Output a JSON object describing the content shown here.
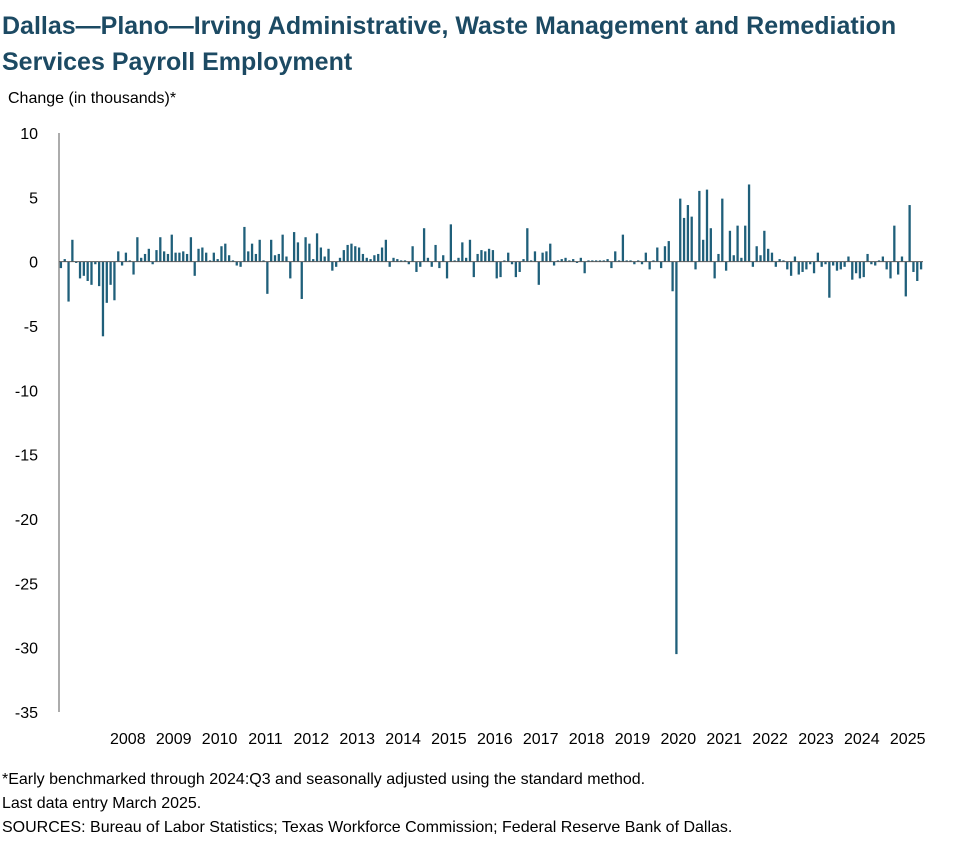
{
  "title": "Dallas—Plano—Irving Administrative, Waste Management and Remediation Services Payroll Employment",
  "chart_data": {
    "type": "bar",
    "title": "Dallas—Plano—Irving Administrative, Waste Management and Remediation Services Payroll Employment",
    "ylabel": "Change (in thousands)*",
    "xlabel": "",
    "ylim": [
      -35,
      10
    ],
    "yticks": [
      "10",
      "5",
      "0",
      "-5",
      "-10",
      "-15",
      "-20",
      "-25",
      "-30",
      "-35"
    ],
    "year_labels": [
      "2008",
      "2009",
      "2010",
      "2011",
      "2012",
      "2013",
      "2014",
      "2015",
      "2016",
      "2017",
      "2018",
      "2019",
      "2020",
      "2021",
      "2022",
      "2023",
      "2024",
      "2025"
    ],
    "start": "2007-01",
    "end": "2025-03",
    "frequency": "monthly",
    "values": [
      -0.5,
      0.2,
      -3.1,
      1.7,
      -0.1,
      -1.3,
      -1.1,
      -1.5,
      -1.8,
      -0.2,
      -1.9,
      -5.8,
      -3.2,
      -1.8,
      -3.0,
      0.8,
      -0.3,
      0.7,
      0.1,
      -1.0,
      1.9,
      0.3,
      0.6,
      1.0,
      -0.2,
      0.9,
      1.9,
      0.8,
      0.6,
      2.1,
      0.7,
      0.7,
      0.8,
      0.6,
      1.9,
      -1.1,
      1.0,
      1.1,
      0.7,
      0.1,
      0.7,
      0.2,
      1.2,
      1.4,
      0.5,
      0.1,
      -0.3,
      -0.4,
      2.7,
      0.8,
      1.4,
      0.6,
      1.7,
      0.1,
      -2.5,
      1.7,
      0.5,
      0.6,
      2.1,
      0.4,
      -1.3,
      2.3,
      1.5,
      -2.9,
      1.9,
      1.4,
      0.2,
      2.2,
      1.1,
      0.4,
      1.0,
      -0.7,
      -0.4,
      0.3,
      0.9,
      1.3,
      1.4,
      1.2,
      1.1,
      0.6,
      0.3,
      0.2,
      0.5,
      0.6,
      1.1,
      1.7,
      -0.4,
      0.3,
      0.2,
      0.1,
      0.1,
      -0.2,
      1.2,
      -0.8,
      -0.4,
      2.6,
      0.3,
      -0.4,
      1.3,
      -0.5,
      0.5,
      -1.3,
      2.9,
      0.1,
      0.3,
      1.5,
      0.3,
      1.7,
      -1.2,
      0.6,
      0.9,
      0.8,
      1.0,
      0.9,
      -1.3,
      -1.2,
      0.1,
      0.7,
      -0.2,
      -1.2,
      -0.8,
      0.2,
      2.6,
      0.1,
      0.8,
      -1.8,
      0.7,
      0.8,
      1.4,
      -0.3,
      0.1,
      0.2,
      0.3,
      0.1,
      0.2,
      -0.1,
      0.3,
      -0.9,
      0.1,
      0.1,
      0.1,
      0.1,
      0.1,
      0.2,
      -0.5,
      0.8,
      0.1,
      2.1,
      0.1,
      0.1,
      -0.2,
      0.1,
      -0.2,
      0.7,
      -0.6,
      0.1,
      1.1,
      -0.5,
      1.2,
      1.6,
      -2.3,
      -30.5,
      4.9,
      3.4,
      4.4,
      3.5,
      -0.6,
      5.5,
      1.7,
      5.6,
      2.6,
      -1.3,
      0.6,
      4.9,
      -0.7,
      2.4,
      0.5,
      2.8,
      0.3,
      2.8,
      6.0,
      -0.4,
      1.2,
      0.5,
      2.4,
      1.0,
      0.7,
      -0.4,
      0.2,
      0.1,
      -0.6,
      -1.1,
      0.4,
      -1.0,
      -0.8,
      -0.6,
      -0.2,
      -0.9,
      0.7,
      -0.4,
      -0.2,
      -2.8,
      -0.3,
      -0.7,
      -0.6,
      -0.4,
      0.4,
      -1.4,
      -0.9,
      -1.3,
      -1.2,
      0.6,
      -0.2,
      -0.3,
      0.1,
      0.4,
      -0.6,
      -1.3,
      2.8,
      -1.0,
      0.4,
      -2.7,
      4.4,
      -0.8,
      -1.5,
      -0.6
    ]
  },
  "notes": {
    "footnote": "*Early benchmarked through 2024:Q3 and seasonally adjusted using the standard method.",
    "last_entry": "Last data entry March 2025.",
    "sources": "SOURCES: Bureau of Labor Statistics; Texas Workforce Commission; Federal Reserve Bank of Dallas."
  },
  "colors": {
    "bar": "#1f5f7a",
    "title": "#1c4a63",
    "axis": "#595959"
  }
}
